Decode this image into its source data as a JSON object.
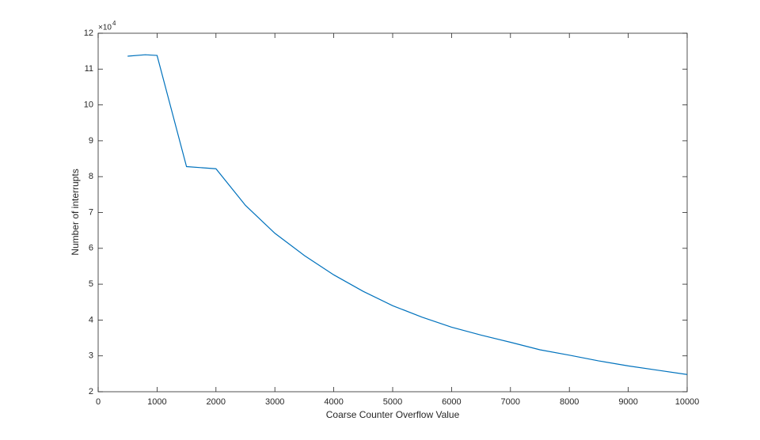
{
  "chart_data": {
    "type": "line",
    "x_label": "Coarse Counter Overflow Value",
    "y_label": "Number of interrupts",
    "y_scale_base": "×10",
    "y_scale_exponent": "4",
    "x": [
      500,
      800,
      1000,
      1500,
      2000,
      2500,
      3000,
      3500,
      4000,
      4500,
      5000,
      5500,
      6000,
      6500,
      7000,
      7500,
      8000,
      8500,
      9000,
      9500,
      10000
    ],
    "series": [
      {
        "color": "#0072bd",
        "values": [
          11.36,
          11.4,
          11.38,
          8.28,
          8.22,
          7.2,
          6.42,
          5.8,
          5.26,
          4.8,
          4.4,
          4.08,
          3.8,
          3.58,
          3.38,
          3.17,
          3.02,
          2.86,
          2.72,
          2.6,
          2.48
        ]
      }
    ],
    "xlim": [
      0,
      10000
    ],
    "xticks": [
      0,
      1000,
      2000,
      3000,
      4000,
      5000,
      6000,
      7000,
      8000,
      9000,
      10000
    ],
    "ylim": [
      2,
      12
    ],
    "yticks": [
      2,
      3,
      4,
      5,
      6,
      7,
      8,
      9,
      10,
      11,
      12
    ],
    "grid": false
  }
}
